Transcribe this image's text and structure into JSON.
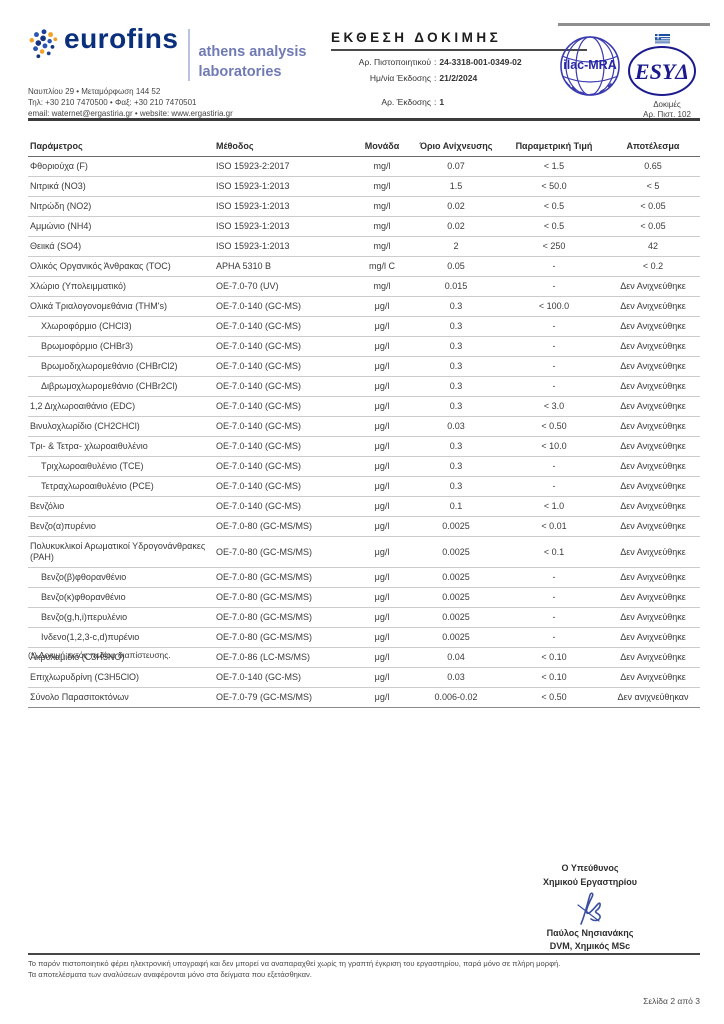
{
  "header": {
    "brand": "eurofins",
    "sub_brand_line1": "athens analysis",
    "sub_brand_line2": "laboratories",
    "address_line1": "Ναυπλίου 29 • Μεταμόρφωση 144 52",
    "address_line2": "Τηλ: +30 210 7470500 • Φαξ: +30 210 7470501",
    "address_line3": "email: waternet@ergastiria.gr • website: www.ergastiria.gr",
    "title": "ΕΚΘΕΣΗ ΔΟΚΙΜΗΣ",
    "cert_label": "Αρ. Πιστοποιητικού",
    "cert_value": "24-3318-001-0349-02",
    "date_label": "Ημ/νία Έκδοσης",
    "date_value": "21/2/2024",
    "version_label": "Αρ. Έκδοσης",
    "version_value": "1",
    "colon": ":",
    "ilac_logo_text": "ilac-MRA",
    "esyd_logo_text": "ΕSYΔ",
    "accreditation_line1": "Δοκιμές",
    "accreditation_line2": "Αρ. Πιστ. 102",
    "brand_blue": "#0a2f7c",
    "brand_orange": "#f0a12c",
    "logo_blue": "#2a2aa0"
  },
  "table": {
    "columns": [
      "Παράμετρος",
      "Μέθοδος",
      "Μονάδα",
      "Όριο Ανίχνευσης",
      "Παραμετρική Τιμή",
      "Αποτέλεσμα"
    ],
    "rows": [
      {
        "param": "Φθοριούχα (F)",
        "method": "ISO 15923-2:2017",
        "unit": "mg/l",
        "lod": "0.07",
        "limit": "< 1.5",
        "result": "0.65",
        "indent": false
      },
      {
        "param": "Νιτρικά (NO3)",
        "method": "ISO 15923-1:2013",
        "unit": "mg/l",
        "lod": "1.5",
        "limit": "< 50.0",
        "result": "< 5",
        "indent": false
      },
      {
        "param": "Νιτρώδη (NO2)",
        "method": "ISO 15923-1:2013",
        "unit": "mg/l",
        "lod": "0.02",
        "limit": "< 0.5",
        "result": "< 0.05",
        "indent": false
      },
      {
        "param": "Αμμώνιο (NH4)",
        "method": "ISO 15923-1:2013",
        "unit": "mg/l",
        "lod": "0.02",
        "limit": "< 0.5",
        "result": "< 0.05",
        "indent": false
      },
      {
        "param": "Θειικά (SO4)",
        "method": "ISO 15923-1:2013",
        "unit": "mg/l",
        "lod": "2",
        "limit": "< 250",
        "result": "42",
        "indent": false
      },
      {
        "param": "Ολικός Οργανικός Άνθρακας (TOC)",
        "method": "APHA 5310 B",
        "unit": "mg/l C",
        "lod": "0.05",
        "limit": "-",
        "result": "< 0.2",
        "indent": false
      },
      {
        "param": "Χλώριο (Υπολειμματικό)",
        "method": "OE-7.0-70 (UV)",
        "unit": "mg/l",
        "lod": "0.015",
        "limit": "-",
        "result": "Δεν Ανιχνεύθηκε",
        "indent": false
      },
      {
        "param": "Ολικά Τριαλογονομεθάνια (THM's)",
        "method": "OE-7.0-140 (GC-MS)",
        "unit": "μg/l",
        "lod": "0.3",
        "limit": "< 100.0",
        "result": "Δεν Ανιχνεύθηκε",
        "indent": false
      },
      {
        "param": "Χλωροφόρμιο (CHCl3)",
        "method": "OE-7.0-140 (GC-MS)",
        "unit": "μg/l",
        "lod": "0.3",
        "limit": "-",
        "result": "Δεν Ανιχνεύθηκε",
        "indent": true
      },
      {
        "param": "Βρωμοφόρμιο (CHBr3)",
        "method": "OE-7.0-140 (GC-MS)",
        "unit": "μg/l",
        "lod": "0.3",
        "limit": "-",
        "result": "Δεν Ανιχνεύθηκε",
        "indent": true
      },
      {
        "param": "Βρωμοδιχλωρομεθάνιο (CHBrCl2)",
        "method": "OE-7.0-140 (GC-MS)",
        "unit": "μg/l",
        "lod": "0.3",
        "limit": "-",
        "result": "Δεν Ανιχνεύθηκε",
        "indent": true
      },
      {
        "param": "Διβρωμοχλωρομεθάνιο (CHBr2Cl)",
        "method": "OE-7.0-140 (GC-MS)",
        "unit": "μg/l",
        "lod": "0.3",
        "limit": "-",
        "result": "Δεν Ανιχνεύθηκε",
        "indent": true
      },
      {
        "param": "1,2 Διχλωροαιθάνιο (EDC)",
        "method": "OE-7.0-140 (GC-MS)",
        "unit": "μg/l",
        "lod": "0.3",
        "limit": "< 3.0",
        "result": "Δεν Ανιχνεύθηκε",
        "indent": false
      },
      {
        "param": "Βινυλοχλωρίδιο (CH2CHCl)",
        "method": "OE-7.0-140 (GC-MS)",
        "unit": "μg/l",
        "lod": "0.03",
        "limit": "< 0.50",
        "result": "Δεν Ανιχνεύθηκε",
        "indent": false
      },
      {
        "param": "Τρι- & Τετρα- χλωροαιθυλένιο",
        "method": "OE-7.0-140 (GC-MS)",
        "unit": "μg/l",
        "lod": "0.3",
        "limit": "< 10.0",
        "result": "Δεν Ανιχνεύθηκε",
        "indent": false
      },
      {
        "param": "Τριχλωροαιθυλένιο (TCE)",
        "method": "OE-7.0-140 (GC-MS)",
        "unit": "μg/l",
        "lod": "0.3",
        "limit": "-",
        "result": "Δεν Ανιχνεύθηκε",
        "indent": true
      },
      {
        "param": "Τετραχλωροαιθυλένιο (PCE)",
        "method": "OE-7.0-140 (GC-MS)",
        "unit": "μg/l",
        "lod": "0.3",
        "limit": "-",
        "result": "Δεν Ανιχνεύθηκε",
        "indent": true
      },
      {
        "param": "Βενζόλιο",
        "method": "OE-7.0-140 (GC-MS)",
        "unit": "μg/l",
        "lod": "0.1",
        "limit": "< 1.0",
        "result": "Δεν Ανιχνεύθηκε",
        "indent": false
      },
      {
        "param": "Βενζο(α)πυρένιο",
        "method": "OE-7.0-80 (GC-MS/MS)",
        "unit": "μg/l",
        "lod": "0.0025",
        "limit": "< 0.01",
        "result": "Δεν Ανιχνεύθηκε",
        "indent": false
      },
      {
        "param": "Πολυκυκλικοί Αρωματικοί Υδρογονάνθρακες (PAH)",
        "method": "OE-7.0-80 (GC-MS/MS)",
        "unit": "μg/l",
        "lod": "0.0025",
        "limit": "< 0.1",
        "result": "Δεν Ανιχνεύθηκε",
        "indent": false
      },
      {
        "param": "Βενζο(β)φθορανθένιο",
        "method": "OE-7.0-80 (GC-MS/MS)",
        "unit": "μg/l",
        "lod": "0.0025",
        "limit": "-",
        "result": "Δεν Ανιχνεύθηκε",
        "indent": true
      },
      {
        "param": "Βενζο(κ)φθορανθένιο",
        "method": "OE-7.0-80 (GC-MS/MS)",
        "unit": "μg/l",
        "lod": "0.0025",
        "limit": "-",
        "result": "Δεν Ανιχνεύθηκε",
        "indent": true
      },
      {
        "param": "Βενζο(g,h,i)περυλένιο",
        "method": "OE-7.0-80 (GC-MS/MS)",
        "unit": "μg/l",
        "lod": "0.0025",
        "limit": "-",
        "result": "Δεν Ανιχνεύθηκε",
        "indent": true
      },
      {
        "param": "Ινδενο(1,2,3-c,d)πυρένιο",
        "method": "OE-7.0-80 (GC-MS/MS)",
        "unit": "μg/l",
        "lod": "0.0025",
        "limit": "-",
        "result": "Δεν Ανιχνεύθηκε",
        "indent": true
      },
      {
        "param": "Ακρυλαμίδιο (C3H5NO)",
        "method": "OE-7.0-86 (LC-MS/MS)",
        "unit": "μg/l",
        "lod": "0.04",
        "limit": "< 0.10",
        "result": "Δεν Ανιχνεύθηκε",
        "indent": false
      },
      {
        "param": "Επιχλωρυδρίνη (C3H5ClO)",
        "method": "OE-7.0-140 (GC-MS)",
        "unit": "μg/l",
        "lod": "0.03",
        "limit": "< 0.10",
        "result": "Δεν Ανιχνεύθηκε",
        "indent": false
      },
      {
        "param": "Σύνολο Παρασιτοκτόνων",
        "method": "OE-7.0-79 (GC-MS/MS)",
        "unit": "μg/l",
        "lod": "0.006-0.02",
        "limit": "< 0.50",
        "result": "Δεν ανιχνεύθηκαν",
        "indent": false
      }
    ]
  },
  "note": "(*) Δοκιμή εκτός πεδίου διαπίστευσης.",
  "signature": {
    "line1": "Ο Υπεύθυνος",
    "line2": "Χημικού Εργαστηρίου",
    "name": "Παύλος Νησιανάκης",
    "credentials": "DVM, Χημικός MSc"
  },
  "footer": {
    "disclaimer_line1": "Το παρόν πιστοποιητικό φέρει ηλεκτρονική υπογραφή και δεν μπορεί να αναπαραχθεί χωρίς τη γραπτή έγκριση του εργαστηρίου, παρά μόνο σε πλήρη μορφή.",
    "disclaimer_line2": "Τα αποτελέσματα των αναλύσεων αναφέρονται μόνο στα δείγματα που εξετάσθηκαν.",
    "page_number": "Σελίδα 2 από 3"
  }
}
